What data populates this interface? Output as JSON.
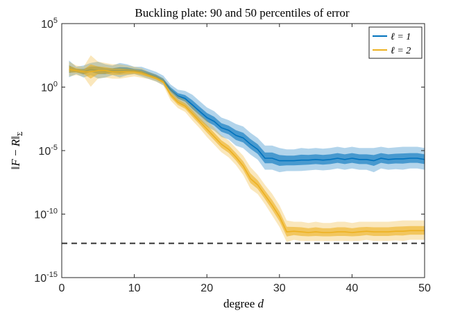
{
  "chart_data": {
    "type": "line",
    "title": "Buckling plate: 90 and 50 percentiles of error",
    "xlabel": "degree d",
    "ylabel": "‖F − R‖_Σ",
    "x_range": [
      0,
      50
    ],
    "y_range": [
      1e-15,
      100000.0
    ],
    "y_scale": "log",
    "x_ticks": [
      "0",
      "10",
      "20",
      "30",
      "40",
      "50"
    ],
    "y_ticks": [
      {
        "base": "10",
        "exp": "5"
      },
      {
        "base": "10",
        "exp": "0"
      },
      {
        "base": "10",
        "exp": "-5"
      },
      {
        "base": "10",
        "exp": "-10"
      },
      {
        "base": "10",
        "exp": "-15"
      }
    ],
    "legend_position": "top-right",
    "grid": false,
    "reference_line": {
      "style": "dashed",
      "color": "#333333",
      "log10_value": -12.3
    },
    "x": [
      1,
      2,
      3,
      4,
      5,
      6,
      7,
      8,
      9,
      10,
      11,
      12,
      13,
      14,
      15,
      16,
      17,
      18,
      19,
      20,
      21,
      22,
      23,
      24,
      25,
      26,
      27,
      28,
      29,
      30,
      31,
      32,
      33,
      34,
      35,
      36,
      37,
      38,
      39,
      40,
      41,
      42,
      43,
      44,
      45,
      46,
      47,
      48,
      49,
      50
    ],
    "series": [
      {
        "name": "ℓ = 1",
        "color": "#0072BD",
        "log10_median": [
          1.4,
          1.3,
          1.2,
          1.4,
          1.3,
          1.25,
          1.3,
          1.3,
          1.35,
          1.3,
          1.2,
          1.0,
          0.8,
          0.5,
          -0.2,
          -0.7,
          -0.9,
          -1.4,
          -1.9,
          -2.4,
          -2.7,
          -3.2,
          -3.4,
          -3.8,
          -4.0,
          -4.5,
          -4.9,
          -5.6,
          -5.6,
          -5.8,
          -5.8,
          -5.8,
          -5.75,
          -5.75,
          -5.7,
          -5.75,
          -5.7,
          -5.6,
          -5.7,
          -5.6,
          -5.7,
          -5.7,
          -5.8,
          -5.6,
          -5.7,
          -5.65,
          -5.65,
          -5.6,
          -5.6,
          -5.7
        ],
        "log10_p90": [
          2.1,
          1.6,
          1.7,
          1.9,
          2.0,
          1.8,
          1.7,
          1.9,
          1.8,
          1.6,
          1.6,
          1.4,
          1.2,
          0.9,
          0.2,
          -0.2,
          -0.3,
          -0.6,
          -1.1,
          -1.6,
          -1.9,
          -2.4,
          -2.6,
          -2.9,
          -3.1,
          -3.6,
          -4.0,
          -4.6,
          -4.6,
          -4.8,
          -4.9,
          -4.9,
          -4.8,
          -4.85,
          -4.8,
          -4.85,
          -4.8,
          -4.7,
          -4.8,
          -4.7,
          -4.8,
          -4.8,
          -4.8,
          -4.7,
          -4.8,
          -4.75,
          -4.7,
          -4.7,
          -4.7,
          -4.8
        ]
      },
      {
        "name": "ℓ = 2",
        "color": "#EDB120",
        "log10_median": [
          1.4,
          1.3,
          1.2,
          1.2,
          1.3,
          1.3,
          1.2,
          1.2,
          1.2,
          1.2,
          1.1,
          0.9,
          0.7,
          0.4,
          -0.6,
          -1.2,
          -1.5,
          -2.1,
          -2.7,
          -3.3,
          -3.9,
          -4.5,
          -4.9,
          -5.5,
          -6.2,
          -7.2,
          -7.7,
          -8.5,
          -9.3,
          -10.2,
          -11.4,
          -11.35,
          -11.4,
          -11.45,
          -11.4,
          -11.45,
          -11.45,
          -11.4,
          -11.4,
          -11.45,
          -11.4,
          -11.35,
          -11.4,
          -11.4,
          -11.4,
          -11.35,
          -11.35,
          -11.3,
          -11.3,
          -11.3
        ],
        "log10_p90": [
          2.0,
          1.7,
          1.6,
          2.5,
          2.0,
          1.9,
          1.8,
          1.8,
          1.7,
          1.6,
          1.5,
          1.2,
          1.0,
          0.7,
          -0.1,
          -0.7,
          -1.0,
          -1.5,
          -2.1,
          -2.6,
          -3.2,
          -3.8,
          -4.2,
          -4.8,
          -5.4,
          -6.3,
          -6.9,
          -7.7,
          -8.4,
          -9.3,
          -10.5,
          -10.6,
          -10.6,
          -10.7,
          -10.6,
          -10.7,
          -10.7,
          -10.6,
          -10.6,
          -10.7,
          -10.6,
          -10.6,
          -10.6,
          -10.6,
          -10.6,
          -10.55,
          -10.5,
          -10.5,
          -10.5,
          -10.5
        ]
      }
    ]
  }
}
